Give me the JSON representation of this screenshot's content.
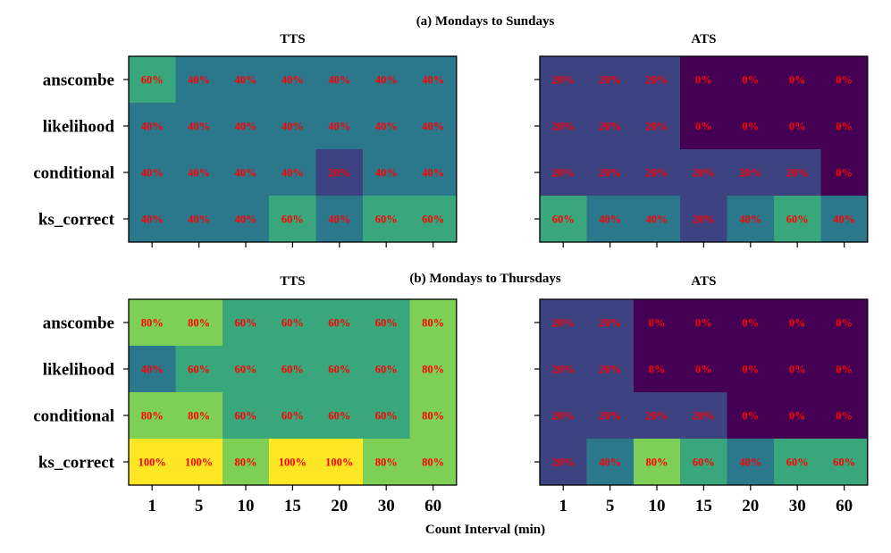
{
  "chart_data": {
    "type": "heatmap",
    "colormap": "viridis",
    "value_range": [
      0,
      100
    ],
    "annotation_color": "#ff0000",
    "row_labels": [
      "anscombe",
      "likelihood",
      "conditional",
      "ks_correct"
    ],
    "col_labels": [
      "1",
      "5",
      "10",
      "15",
      "20",
      "30",
      "60"
    ],
    "xlabel": "Count Interval (min)",
    "sections": [
      {
        "title": "(a) Mondays to Sundays",
        "panels": [
          {
            "title": "TTS",
            "values": [
              [
                60,
                40,
                40,
                40,
                40,
                40,
                40
              ],
              [
                40,
                40,
                40,
                40,
                40,
                40,
                40
              ],
              [
                40,
                40,
                40,
                40,
                20,
                40,
                40
              ],
              [
                40,
                40,
                40,
                60,
                40,
                60,
                60
              ]
            ],
            "labels": [
              [
                "60%",
                "40%",
                "40%",
                "40%",
                "40%",
                "40%",
                "40%"
              ],
              [
                "40%",
                "40%",
                "40%",
                "40%",
                "40%",
                "40%",
                "40%"
              ],
              [
                "40%",
                "40%",
                "40%",
                "40%",
                "20%",
                "40%",
                "40%"
              ],
              [
                "40%",
                "40%",
                "40%",
                "60%",
                "40%",
                "60%",
                "60%"
              ]
            ]
          },
          {
            "title": "ATS",
            "values": [
              [
                20,
                20,
                20,
                0,
                0,
                0,
                0
              ],
              [
                20,
                20,
                20,
                0,
                0,
                0,
                0
              ],
              [
                20,
                20,
                20,
                20,
                20,
                20,
                0
              ],
              [
                60,
                40,
                40,
                20,
                40,
                60,
                40
              ]
            ],
            "labels": [
              [
                "20%",
                "20%",
                "20%",
                "0%",
                "0%",
                "0%",
                "0%"
              ],
              [
                "20%",
                "20%",
                "20%",
                "0%",
                "0%",
                "0%",
                "0%"
              ],
              [
                "20%",
                "20%",
                "20%",
                "20%",
                "20%",
                "20%",
                "0%"
              ],
              [
                "60%",
                "40%",
                "40%",
                "20%",
                "40%",
                "60%",
                "40%"
              ]
            ]
          }
        ]
      },
      {
        "title": "(b) Mondays to Thursdays",
        "panels": [
          {
            "title": "TTS",
            "values": [
              [
                80,
                80,
                60,
                60,
                60,
                60,
                80
              ],
              [
                40,
                60,
                60,
                60,
                60,
                60,
                80
              ],
              [
                80,
                80,
                60,
                60,
                60,
                60,
                80
              ],
              [
                100,
                100,
                80,
                100,
                100,
                80,
                80
              ]
            ],
            "labels": [
              [
                "80%",
                "80%",
                "60%",
                "60%",
                "60%",
                "60%",
                "80%"
              ],
              [
                "40%",
                "60%",
                "60%",
                "60%",
                "60%",
                "60%",
                "80%"
              ],
              [
                "80%",
                "80%",
                "60%",
                "60%",
                "60%",
                "60%",
                "80%"
              ],
              [
                "100%",
                "100%",
                "80%",
                "100%",
                "100%",
                "80%",
                "80%"
              ]
            ]
          },
          {
            "title": "ATS",
            "values": [
              [
                20,
                20,
                0,
                0,
                0,
                0,
                0
              ],
              [
                20,
                20,
                0,
                0,
                0,
                0,
                0
              ],
              [
                20,
                20,
                20,
                20,
                0,
                0,
                0
              ],
              [
                20,
                40,
                80,
                60,
                40,
                60,
                60
              ]
            ],
            "labels": [
              [
                "20%",
                "20%",
                "0%",
                "0%",
                "0%",
                "0%",
                "0%"
              ],
              [
                "20%",
                "20%",
                "0%",
                "0%",
                "0%",
                "0%",
                "0%"
              ],
              [
                "20%",
                "20%",
                "20%",
                "20%",
                "0%",
                "0%",
                "0%"
              ],
              [
                "20%",
                "40%",
                "80%",
                "60%",
                "40%",
                "60%",
                "60%"
              ]
            ]
          }
        ]
      }
    ]
  }
}
